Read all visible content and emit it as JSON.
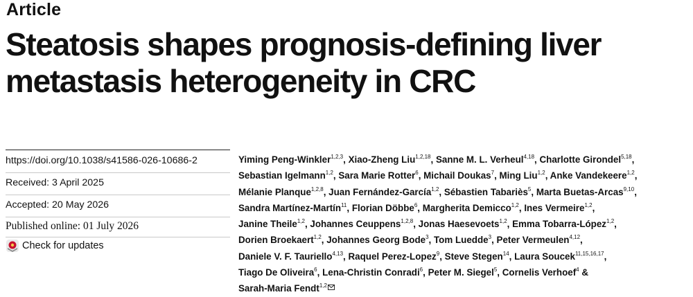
{
  "header": {
    "label": "Article"
  },
  "title": {
    "line1": "Steatosis shapes prognosis-defining liver",
    "line2": "metastasis heterogeneity in CRC"
  },
  "meta": {
    "doi": "https://doi.org/10.1038/s41586-026-10686-2",
    "received": "Received: 3 April 2025",
    "accepted": "Accepted: 20 May 2026",
    "published": "Published online: 01 July 2026",
    "check_updates": "Check for updates"
  },
  "authors": [
    [
      [
        "Yiming Peng-Winkler",
        "1,2,3",
        ", "
      ],
      [
        "Xiao-Zheng Liu",
        "1,2,18",
        ", "
      ],
      [
        "Sanne M. L. Verheul",
        "4,18",
        ", "
      ],
      [
        "Charlotte Girondel",
        "5,18",
        ","
      ]
    ],
    [
      [
        "Sebastian Igelmann",
        "1,2",
        ", "
      ],
      [
        "Sara Marie Rotter",
        "6",
        ", "
      ],
      [
        "Michail Doukas",
        "7",
        ", "
      ],
      [
        "Ming Liu",
        "1,2",
        ", "
      ],
      [
        "Anke Vandekeere",
        "1,2",
        ","
      ]
    ],
    [
      [
        "Mélanie Planque",
        "1,2,8",
        ", "
      ],
      [
        "Juan Fernández-García",
        "1,2",
        ", "
      ],
      [
        "Sébastien Tabariès",
        "5",
        ", "
      ],
      [
        "Marta Buetas-Arcas",
        "9,10",
        ","
      ]
    ],
    [
      [
        "Sandra Martínez-Martín",
        "11",
        ", "
      ],
      [
        "Florian Döbbe",
        "6",
        ", "
      ],
      [
        "Margherita Demicco",
        "1,2",
        ", "
      ],
      [
        "Ines Vermeire",
        "1,2",
        ","
      ]
    ],
    [
      [
        "Janine Theile",
        "1,2",
        ", "
      ],
      [
        "Johannes Ceuppens",
        "1,2,8",
        ", "
      ],
      [
        "Jonas Haesevoets",
        "1,2",
        ", "
      ],
      [
        "Emma Tobarra-López",
        "1,2",
        ","
      ]
    ],
    [
      [
        "Dorien Broekaert",
        "1,2",
        ", "
      ],
      [
        "Johannes Georg Bode",
        "3",
        ", "
      ],
      [
        "Tom Luedde",
        "3",
        ", "
      ],
      [
        "Peter Vermeulen",
        "4,12",
        ","
      ]
    ],
    [
      [
        "Daniele V. F. Tauriello",
        "4,13",
        ", "
      ],
      [
        "Raquel Perez-Lopez",
        "9",
        ", "
      ],
      [
        "Steve Stegen",
        "14",
        ", "
      ],
      [
        "Laura Soucek",
        "11,15,16,17",
        ","
      ]
    ],
    [
      [
        "Tiago De Oliveira",
        "6",
        ", "
      ],
      [
        "Lena-Christin Conradi",
        "6",
        ", "
      ],
      [
        "Peter M. Siegel",
        "5",
        ", "
      ],
      [
        "Cornelis Verhoef",
        "4",
        " & "
      ]
    ],
    [
      [
        "Sarah-Maria Fendt",
        "1,2",
        ""
      ]
    ]
  ],
  "icons": {
    "updates": "check-for-updates-icon",
    "email": "email-icon"
  },
  "colors": {
    "updates_icon_red": "#c8102e"
  }
}
